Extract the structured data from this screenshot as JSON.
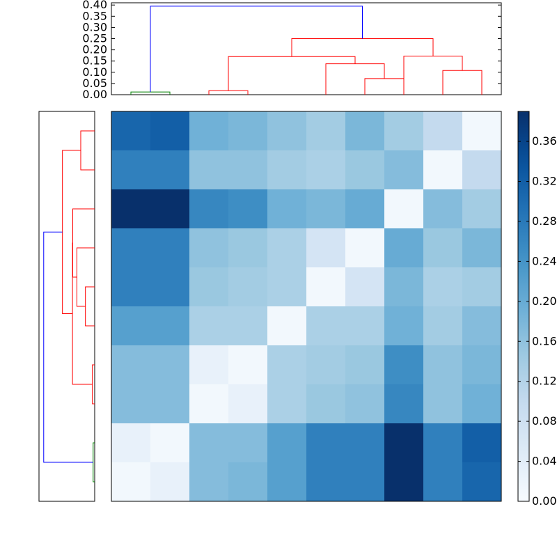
{
  "chart_data": [
    {
      "type": "dendrogram",
      "orientation": "top",
      "ylim": [
        0,
        0.41
      ],
      "ytick_labels": [
        "0.00",
        "0.05",
        "0.10",
        "0.15",
        "0.20",
        "0.25",
        "0.30",
        "0.35",
        "0.40"
      ],
      "ytick_values": [
        0,
        0.05,
        0.1,
        0.15,
        0.2,
        0.25,
        0.3,
        0.35,
        0.4
      ],
      "leaf_count": 10,
      "links": [
        {
          "left": 0,
          "right": 1,
          "height": 0.012,
          "color": "#008000"
        },
        {
          "left": 2,
          "right": 3,
          "height": 0.018,
          "color": "#ff0000"
        },
        {
          "left": 6,
          "right": 7,
          "height": 0.072,
          "color": "#ff0000"
        },
        {
          "left": 8,
          "right": 9,
          "height": 0.108,
          "color": "#ff0000"
        },
        {
          "left": 5,
          "right": 6.5,
          "height": 0.138,
          "color": "#ff0000"
        },
        {
          "left": 2.5,
          "right": 5.75,
          "height": 0.17,
          "color": "#ff0000"
        },
        {
          "left": 7,
          "right": 8.5,
          "height": 0.172,
          "color": "#ff0000"
        },
        {
          "left": 4.125,
          "right": 7.75,
          "height": 0.25,
          "color": "#ff0000"
        },
        {
          "left": 0.5,
          "right": 5.9375,
          "height": 0.395,
          "color": "#0000ff"
        }
      ]
    },
    {
      "type": "dendrogram",
      "orientation": "left",
      "leaf_count": 10,
      "links": [
        {
          "left": 0,
          "right": 1,
          "height": 0.012,
          "color": "#008000"
        },
        {
          "left": 2,
          "right": 3,
          "height": 0.018,
          "color": "#ff0000"
        },
        {
          "left": 4,
          "right": 5,
          "height": 0.072,
          "color": "#ff0000"
        },
        {
          "left": 8,
          "right": 9,
          "height": 0.108,
          "color": "#ff0000"
        },
        {
          "left": 4.5,
          "right": 6,
          "height": 0.138,
          "color": "#ff0000"
        },
        {
          "left": 5.25,
          "right": 7,
          "height": 0.17,
          "color": "#ff0000"
        },
        {
          "left": 2.5,
          "right": 6.125,
          "height": 0.172,
          "color": "#ff0000"
        },
        {
          "left": 4.3125,
          "right": 8.5,
          "height": 0.25,
          "color": "#ff0000"
        },
        {
          "left": 0.5,
          "right": 6.40625,
          "height": 0.395,
          "color": "#0000ff"
        }
      ]
    },
    {
      "type": "heatmap",
      "colormap": "Blues",
      "vmin": 0,
      "vmax": 0.39,
      "rows": 10,
      "cols": 10,
      "values": [
        [
          0.31,
          0.32,
          0.19,
          0.18,
          0.16,
          0.14,
          0.18,
          0.14,
          0.1,
          0.01
        ],
        [
          0.27,
          0.27,
          0.16,
          0.16,
          0.14,
          0.13,
          0.15,
          0.17,
          0.01,
          0.1
        ],
        [
          0.39,
          0.39,
          0.26,
          0.25,
          0.19,
          0.18,
          0.2,
          0.01,
          0.17,
          0.14
        ],
        [
          0.27,
          0.27,
          0.16,
          0.15,
          0.13,
          0.07,
          0.01,
          0.2,
          0.15,
          0.18
        ],
        [
          0.27,
          0.27,
          0.15,
          0.14,
          0.13,
          0.01,
          0.07,
          0.18,
          0.13,
          0.14
        ],
        [
          0.22,
          0.22,
          0.13,
          0.13,
          0.01,
          0.13,
          0.13,
          0.19,
          0.14,
          0.17
        ],
        [
          0.17,
          0.17,
          0.03,
          0.01,
          0.13,
          0.14,
          0.15,
          0.25,
          0.16,
          0.18
        ],
        [
          0.17,
          0.17,
          0.01,
          0.03,
          0.13,
          0.15,
          0.16,
          0.26,
          0.16,
          0.19
        ],
        [
          0.03,
          0.01,
          0.17,
          0.17,
          0.22,
          0.27,
          0.27,
          0.39,
          0.27,
          0.32
        ],
        [
          0.01,
          0.03,
          0.17,
          0.18,
          0.22,
          0.27,
          0.27,
          0.39,
          0.27,
          0.31
        ]
      ]
    },
    {
      "type": "colorbar",
      "colormap": "Blues",
      "vmin": 0,
      "vmax": 0.39,
      "tick_labels": [
        "0.00",
        "0.04",
        "0.08",
        "0.12",
        "0.16",
        "0.20",
        "0.24",
        "0.28",
        "0.32",
        "0.36"
      ],
      "tick_values": [
        0,
        0.04,
        0.08,
        0.12,
        0.16,
        0.2,
        0.24,
        0.28,
        0.32,
        0.36
      ]
    }
  ]
}
